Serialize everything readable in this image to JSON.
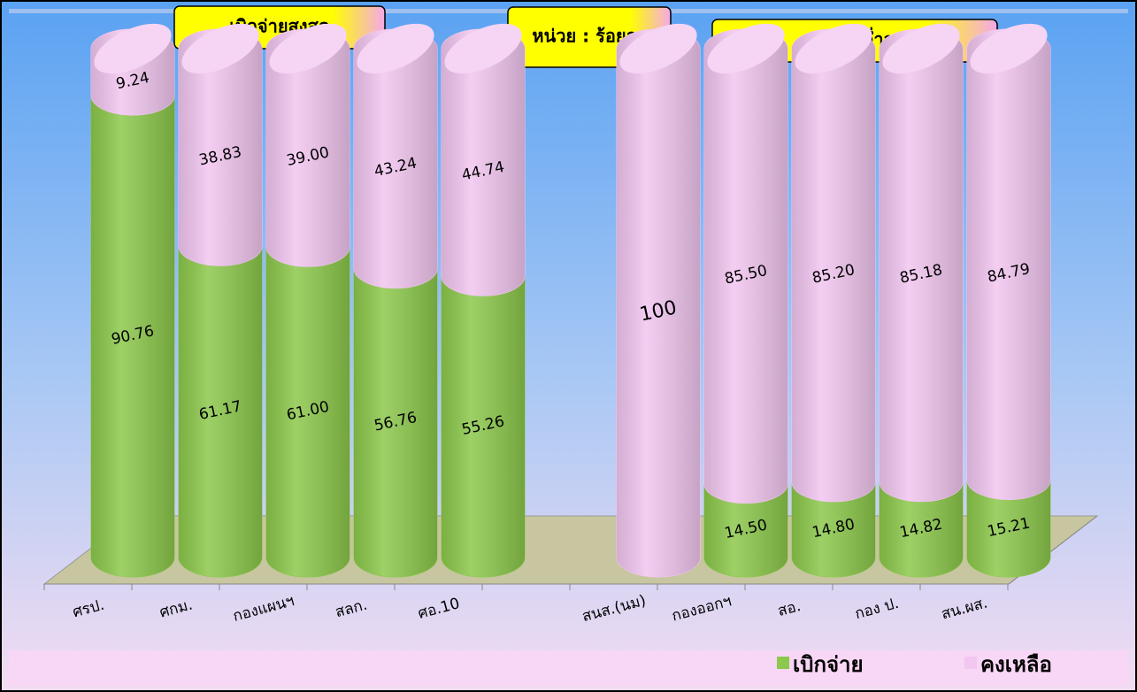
{
  "chart_data": {
    "type": "bar",
    "stacked": true,
    "annotations": [
      "เบิกจ่ายสูงสุด",
      "หน่วย : ร้อยละ",
      "เบิกจ่ายต่ำสุด"
    ],
    "categories": [
      "ศรป.",
      "ศกม.",
      "กองแผนฯ",
      "สลก.",
      "ศอ.10",
      null,
      "สนส.(นม)",
      "กองออกฯ",
      "สอ.",
      "กอง ป.",
      "สน.ผส."
    ],
    "series": [
      {
        "name": "เบิกจ่าย",
        "color": "#8cc84b",
        "values": [
          90.76,
          61.17,
          61.0,
          56.76,
          55.26,
          null,
          null,
          14.5,
          14.8,
          14.82,
          15.21
        ],
        "value_labels": [
          "90.76",
          "61.17",
          "61.00",
          "56.76",
          "55.26",
          null,
          null,
          "14.50",
          "14.80",
          "14.82",
          "15.21"
        ]
      },
      {
        "name": "คงเหลือ",
        "color": "#f2c6f0",
        "values": [
          9.24,
          38.83,
          39.0,
          43.24,
          44.74,
          null,
          100,
          85.5,
          85.2,
          85.18,
          84.79
        ],
        "value_labels": [
          "9.24",
          "38.83",
          "39.00",
          "43.24",
          "44.74",
          null,
          "100",
          "85.50",
          "85.20",
          "85.18",
          "84.79"
        ]
      }
    ],
    "ylim": [
      0,
      100
    ],
    "legend": "bottom-right"
  }
}
